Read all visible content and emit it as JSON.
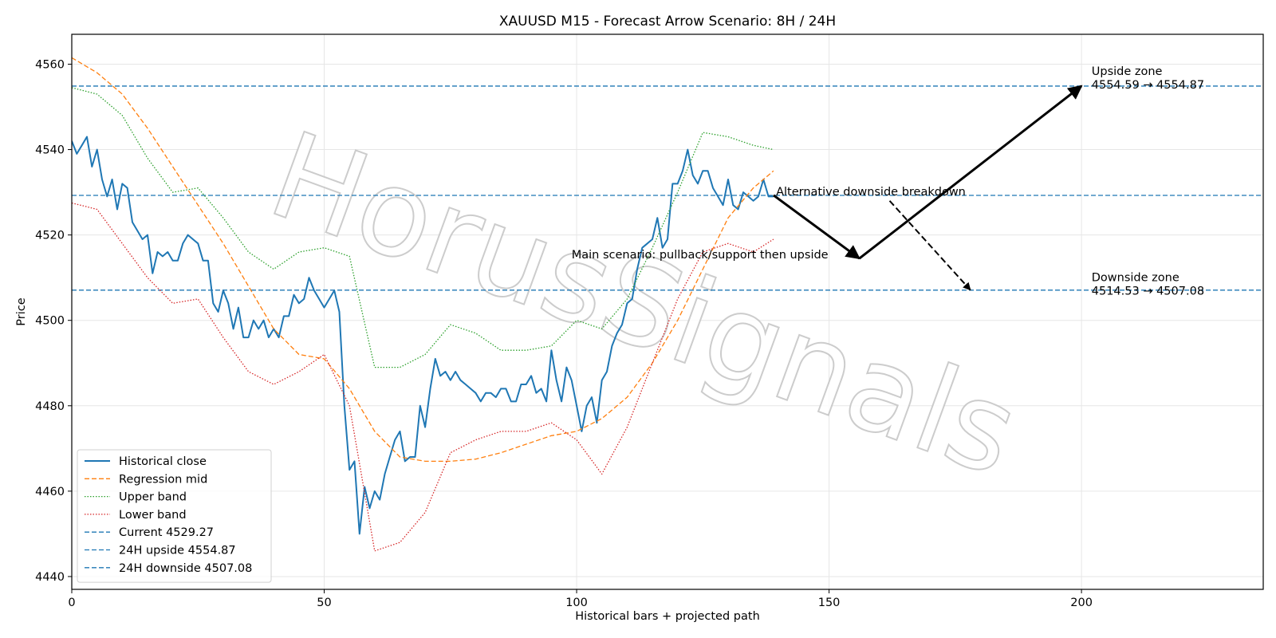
{
  "watermark": "HorusSignals",
  "chart_data": {
    "type": "line",
    "title": "XAUUSD M15 - Forecast Arrow Scenario: 8H / 24H",
    "xlabel": "Historical bars + projected path",
    "ylabel": "Price",
    "xlim": [
      0,
      236
    ],
    "ylim": [
      4437,
      4567
    ],
    "x_ticks": [
      0,
      50,
      100,
      150,
      200
    ],
    "y_ticks": [
      4440,
      4460,
      4480,
      4500,
      4520,
      4540,
      4560
    ],
    "grid": true,
    "legend_position": "lower-left",
    "series": [
      {
        "name": "Historical close",
        "style": "solid",
        "color": "#1f77b4",
        "x_start": 0,
        "values": [
          4542,
          4539,
          4541,
          4543,
          4536,
          4540,
          4533,
          4529,
          4533,
          4526,
          4532,
          4531,
          4523,
          4521,
          4519,
          4520,
          4511,
          4516,
          4515,
          4516,
          4514,
          4514,
          4518,
          4520,
          4519,
          4518,
          4514,
          4514,
          4504,
          4502,
          4507,
          4504,
          4498,
          4503,
          4496,
          4496,
          4500,
          4498,
          4500,
          4496,
          4498,
          4496,
          4501,
          4501,
          4506,
          4504,
          4505,
          4510,
          4507,
          4505,
          4503,
          4505,
          4507,
          4502,
          4480,
          4465,
          4467,
          4450,
          4461,
          4456,
          4460,
          4458,
          4464,
          4468,
          4472,
          4474,
          4467,
          4468,
          4468,
          4480,
          4475,
          4484,
          4491,
          4487,
          4488,
          4486,
          4488,
          4486,
          4485,
          4484,
          4483,
          4481,
          4483,
          4483,
          4482,
          4484,
          4484,
          4481,
          4481,
          4485,
          4485,
          4487,
          4483,
          4484,
          4481,
          4493,
          4486,
          4481,
          4489,
          4486,
          4480,
          4474,
          4480,
          4482,
          4476,
          4486,
          4488,
          4494,
          4497,
          4499,
          4504,
          4505,
          4512,
          4517,
          4518,
          4519,
          4524,
          4517,
          4519,
          4532,
          4532,
          4535,
          4540,
          4534,
          4532,
          4535,
          4535,
          4531,
          4529,
          4527,
          4533,
          4527,
          4526,
          4530,
          4529,
          4528,
          4529,
          4533,
          4529,
          4529
        ]
      },
      {
        "name": "Regression mid",
        "style": "dashed",
        "color": "#ff7f0e",
        "x": [
          0,
          5,
          10,
          15,
          20,
          25,
          30,
          35,
          40,
          45,
          50,
          55,
          60,
          65,
          70,
          75,
          80,
          85,
          90,
          95,
          100,
          105,
          110,
          115,
          120,
          125,
          130,
          135,
          139
        ],
        "values": [
          4561.5,
          4558,
          4553,
          4545,
          4536,
          4527,
          4518,
          4508,
          4498,
          4492,
          4491,
          4484,
          4474,
          4468,
          4467,
          4467,
          4467.5,
          4469,
          4471,
          4473,
          4474,
          4477,
          4482,
          4490,
          4500,
          4512,
          4524,
          4531,
          4535
        ]
      },
      {
        "name": "Upper band",
        "style": "dotted",
        "color": "#2ca02c",
        "x": [
          0,
          5,
          10,
          15,
          20,
          25,
          30,
          35,
          40,
          45,
          50,
          55,
          60,
          65,
          70,
          75,
          80,
          85,
          90,
          95,
          100,
          105,
          110,
          115,
          120,
          125,
          130,
          135,
          139
        ],
        "values": [
          4554.5,
          4553,
          4548,
          4538,
          4530,
          4531,
          4524,
          4516,
          4512,
          4516,
          4517,
          4515,
          4489,
          4489,
          4492,
          4499,
          4497,
          4493,
          4493,
          4494,
          4500,
          4498,
          4505,
          4517,
          4530,
          4544,
          4543,
          4541,
          4540
        ]
      },
      {
        "name": "Lower band",
        "style": "dotted",
        "color": "#d62728",
        "x": [
          0,
          5,
          10,
          15,
          20,
          25,
          30,
          35,
          40,
          45,
          50,
          55,
          60,
          65,
          70,
          75,
          80,
          85,
          90,
          95,
          100,
          105,
          110,
          115,
          120,
          125,
          130,
          135,
          139
        ],
        "values": [
          4527.5,
          4526,
          4518,
          4510,
          4504,
          4505,
          4496,
          4488,
          4485,
          4488,
          4492,
          4480,
          4446,
          4448,
          4455,
          4469,
          4472,
          4474,
          4474,
          4476,
          4472,
          4464,
          4475,
          4490,
          4505,
          4516,
          4518,
          4516,
          4519
        ]
      }
    ],
    "reference_lines": [
      {
        "name": "Current 4529.27",
        "y": 4529.27,
        "style": "dashed",
        "color": "#1f77b4"
      },
      {
        "name": "24H upside 4554.87",
        "y": 4554.87,
        "style": "dashed",
        "color": "#1f77b4"
      },
      {
        "name": "24H downside 4507.08",
        "y": 4507.08,
        "style": "dashed",
        "color": "#1f77b4"
      }
    ],
    "arrows": [
      {
        "id": "main-first-leg",
        "from": [
          139,
          4529.3
        ],
        "to": [
          156,
          4514.5
        ],
        "style": "solid"
      },
      {
        "id": "main-second-leg",
        "from": [
          156,
          4514.5
        ],
        "to": [
          200,
          4554.9
        ],
        "style": "solid"
      },
      {
        "id": "alt-downside",
        "from": [
          162,
          4528
        ],
        "to": [
          178,
          4507.1
        ],
        "style": "dashed"
      }
    ],
    "annotations": [
      {
        "id": "main-scenario",
        "text": "Main scenario: pullback/support then upside",
        "x": 99,
        "y": 4514.5
      },
      {
        "id": "alt-scenario",
        "text": "Alternative downside breakdown",
        "x": 139.5,
        "y": 4529.3
      },
      {
        "id": "upside-zone",
        "lines": [
          "Upside zone",
          "4554.59 → 4554.87"
        ],
        "x": 202,
        "y": 4557.5
      },
      {
        "id": "downside-zone",
        "lines": [
          "Downside zone",
          "4514.53 → 4507.08"
        ],
        "x": 202,
        "y": 4509.2
      }
    ]
  }
}
